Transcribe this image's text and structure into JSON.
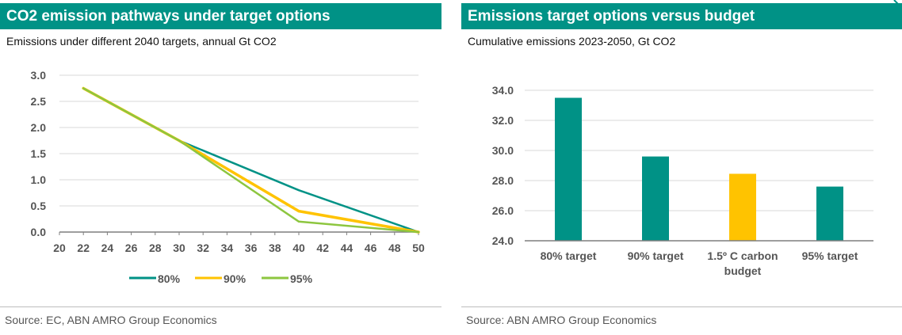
{
  "left_panel": {
    "title": "CO2 emission pathways under target options",
    "subtitle": "Emissions under different 2040 targets, annual Gt CO2",
    "source": "Source: EC, ABN AMRO Group Economics"
  },
  "right_panel": {
    "title": "Emissions target options versus budget",
    "subtitle": "Cumulative emissions 2023-2050, Gt CO2",
    "source": "Source: ABN AMRO Group Economics"
  },
  "colors": {
    "teal": "#009286",
    "yellow": "#FFC300",
    "light_green": "#8DC63F",
    "grid": "#d9d9d9",
    "axis": "#7f7f7f"
  },
  "chart_data": [
    {
      "type": "line",
      "title": "CO2 emission pathways under target options",
      "subtitle": "Emissions under different 2040 targets, annual Gt CO2",
      "xlabel": "",
      "ylabel": "",
      "x_ticks": [
        "20",
        "22",
        "24",
        "26",
        "28",
        "30",
        "32",
        "34",
        "36",
        "38",
        "40",
        "42",
        "44",
        "46",
        "48",
        "50"
      ],
      "xlim": [
        20,
        50
      ],
      "ylim": [
        0,
        3.0
      ],
      "y_ticks": [
        "0.0",
        "0.5",
        "1.0",
        "1.5",
        "2.0",
        "2.5",
        "3.0"
      ],
      "grid": true,
      "legend_position": "bottom",
      "series": [
        {
          "name": "80%",
          "color": "#009286",
          "points": [
            [
              22,
              2.75
            ],
            [
              30,
              1.75
            ],
            [
              40,
              0.8
            ],
            [
              50,
              0.0
            ]
          ]
        },
        {
          "name": "90%",
          "color": "#FFC300",
          "points": [
            [
              22,
              2.75
            ],
            [
              30,
              1.75
            ],
            [
              40,
              0.4
            ],
            [
              50,
              0.0
            ]
          ]
        },
        {
          "name": "95%",
          "color": "#8DC63F",
          "points": [
            [
              22,
              2.75
            ],
            [
              30,
              1.75
            ],
            [
              40,
              0.2
            ],
            [
              50,
              0.0
            ]
          ]
        }
      ]
    },
    {
      "type": "bar",
      "title": "Emissions target options versus budget",
      "subtitle": "Cumulative emissions 2023-2050, Gt CO2",
      "xlabel": "",
      "ylabel": "",
      "categories": [
        [
          "80% target"
        ],
        [
          "90% target"
        ],
        [
          "1.5º C carbon",
          "budget"
        ],
        [
          "95% target"
        ]
      ],
      "values": [
        33.5,
        29.6,
        28.45,
        27.6
      ],
      "bar_colors": [
        "#009286",
        "#009286",
        "#FFC300",
        "#009286"
      ],
      "ylim": [
        24.0,
        34.0
      ],
      "y_ticks": [
        "24.0",
        "26.0",
        "28.0",
        "30.0",
        "32.0",
        "34.0"
      ],
      "grid": true
    }
  ]
}
